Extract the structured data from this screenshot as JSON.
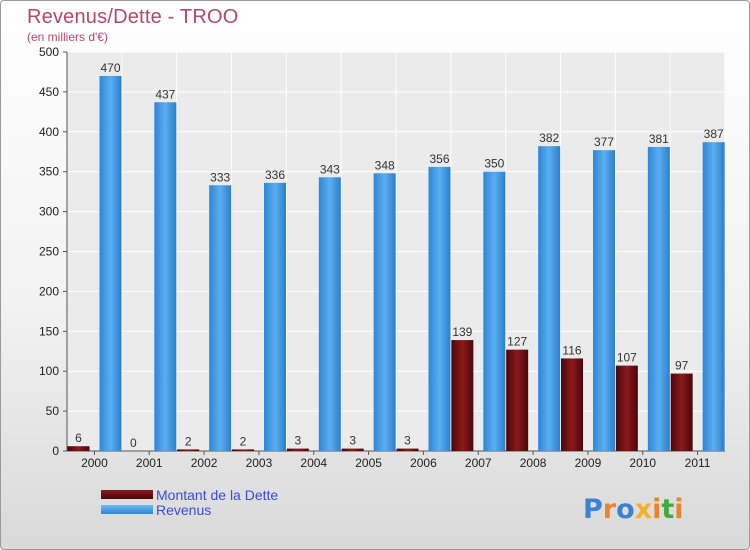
{
  "chart_data": {
    "type": "bar",
    "title": "Revenus/Dette - TROO",
    "subtitle": "(en milliers d'€)",
    "categories": [
      "2000",
      "2001",
      "2002",
      "2003",
      "2004",
      "2005",
      "2006",
      "2007",
      "2008",
      "2009",
      "2010",
      "2011"
    ],
    "series": [
      {
        "name": "Montant de la Dette",
        "color": "#6e0f12",
        "values": [
          6,
          0,
          2,
          2,
          3,
          3,
          3,
          139,
          127,
          116,
          107,
          97
        ]
      },
      {
        "name": "Revenus",
        "color": "#3f9be6",
        "values": [
          470,
          437,
          333,
          336,
          343,
          348,
          356,
          350,
          382,
          377,
          381,
          387
        ]
      }
    ],
    "y_ticks": [
      0,
      50,
      100,
      150,
      200,
      250,
      300,
      350,
      400,
      450,
      500
    ],
    "ylim": [
      0,
      500
    ],
    "grid": true,
    "legend_position": "bottom-left"
  },
  "brand": {
    "name": "Proxiti",
    "letters": [
      "P",
      "r",
      "o",
      "x",
      "i",
      "t",
      "i"
    ]
  }
}
